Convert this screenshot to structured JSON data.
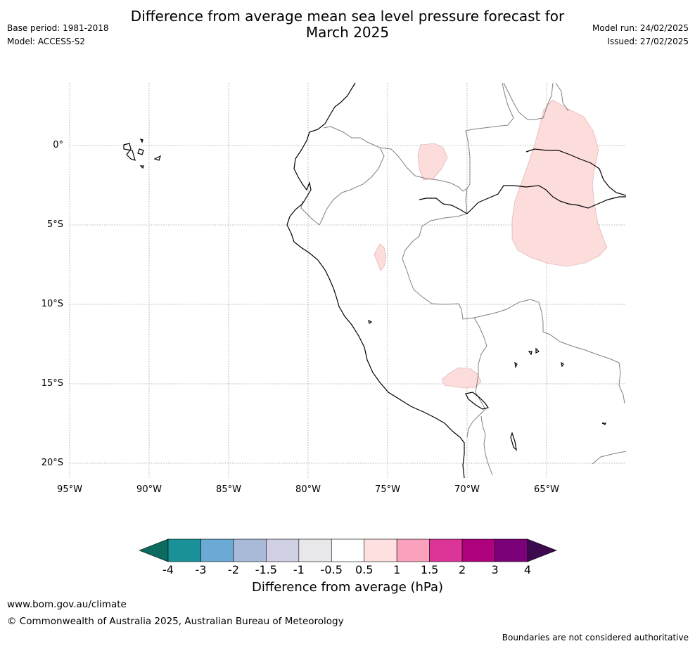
{
  "header": {
    "title_line1": "Difference from average mean sea level pressure forecast for",
    "title_line2": "March 2025",
    "base_period": "Base period: 1981-2018",
    "model": "Model: ACCESS-S2",
    "model_run": "Model run: 24/02/2025",
    "issued": "Issued: 27/02/2025"
  },
  "map": {
    "lat_labels": [
      "0°",
      "5°S",
      "10°S",
      "15°S",
      "20°S"
    ],
    "lon_labels": [
      "95°W",
      "90°W",
      "85°W",
      "80°W",
      "75°W",
      "70°W",
      "65°W"
    ],
    "anomaly_fill_color": "#fddcdc",
    "coast_color": "#000000",
    "border_color": "#808080",
    "grid_color": "#9a9a9a"
  },
  "colorbar": {
    "title": "Difference from average (hPa)",
    "tick_labels": [
      "-4",
      "-3",
      "-2",
      "-1.5",
      "-1",
      "-0.5",
      "0.5",
      "1",
      "1.5",
      "2",
      "3",
      "4"
    ],
    "low_extend_color": "#0b6b60",
    "high_extend_color": "#3d0a4f",
    "colors": [
      "#1a9198",
      "#6aaad4",
      "#a9b9d8",
      "#d0d0e4",
      "#e8e7ea",
      "#ffffff",
      "#fde0df",
      "#f9a1bd",
      "#dd3497",
      "#ae017e",
      "#7a0177"
    ]
  },
  "footer": {
    "website": "www.bom.gov.au/climate",
    "copyright": "© Commonwealth of Australia 2025, Australian Bureau of Meteorology",
    "disclaimer": "Boundaries are not considered authoritative"
  }
}
